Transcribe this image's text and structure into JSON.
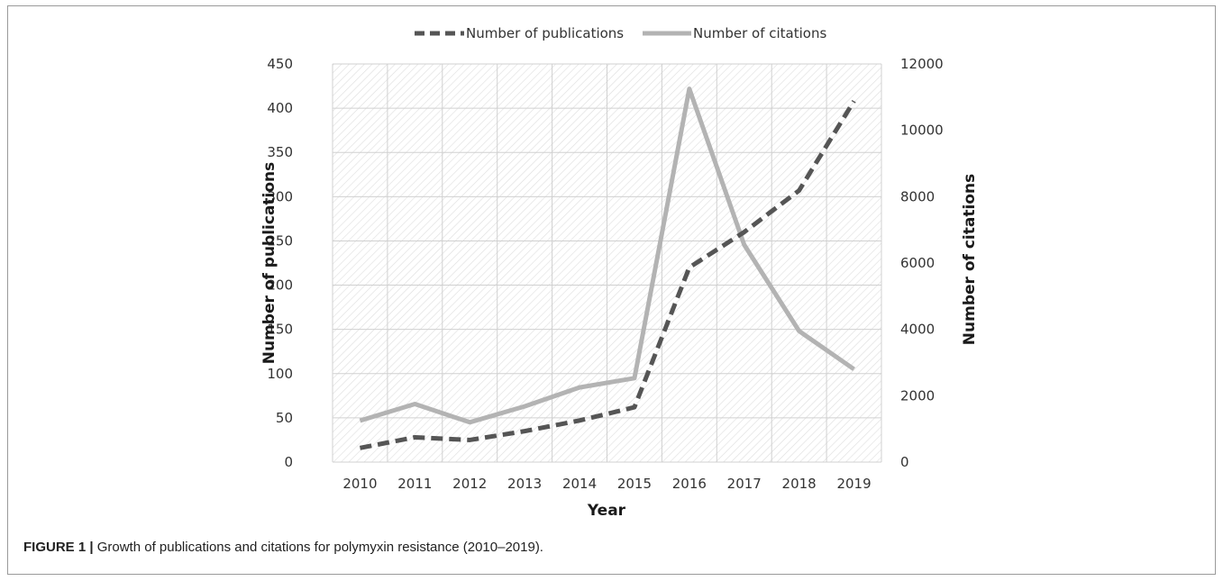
{
  "chart_data": {
    "type": "line",
    "x": [
      2010,
      2011,
      2012,
      2013,
      2014,
      2015,
      2016,
      2017,
      2018,
      2019
    ],
    "categories": [
      "2010",
      "2011",
      "2012",
      "2013",
      "2014",
      "2015",
      "2016",
      "2017",
      "2018",
      "2019"
    ],
    "xlabel": "Year",
    "ylabel": "Number of publications",
    "y2label": "Number of citations",
    "ylim": [
      0,
      450
    ],
    "y2lim": [
      0,
      12000
    ],
    "yticks": [
      "0",
      "50",
      "100",
      "150",
      "200",
      "250",
      "300",
      "350",
      "400",
      "450"
    ],
    "y2ticks": [
      "0",
      "2000",
      "4000",
      "6000",
      "8000",
      "10000",
      "12000"
    ],
    "grid": true,
    "legend_position": "top",
    "series": [
      {
        "name": "Number of publications",
        "axis": "left",
        "style": "dashed",
        "color": "#555555",
        "values": [
          16,
          28,
          25,
          35,
          47,
          62,
          220,
          260,
          307,
          408
        ]
      },
      {
        "name": "Number of citations",
        "axis": "right",
        "style": "solid",
        "color": "#b3b3b3",
        "values": [
          1250,
          1750,
          1200,
          1680,
          2250,
          2530,
          11250,
          6550,
          3950,
          2800
        ]
      }
    ]
  },
  "caption": {
    "label": "FIGURE 1 |",
    "text": " Growth of publications and citations for polymyxin resistance (2010–2019)."
  }
}
